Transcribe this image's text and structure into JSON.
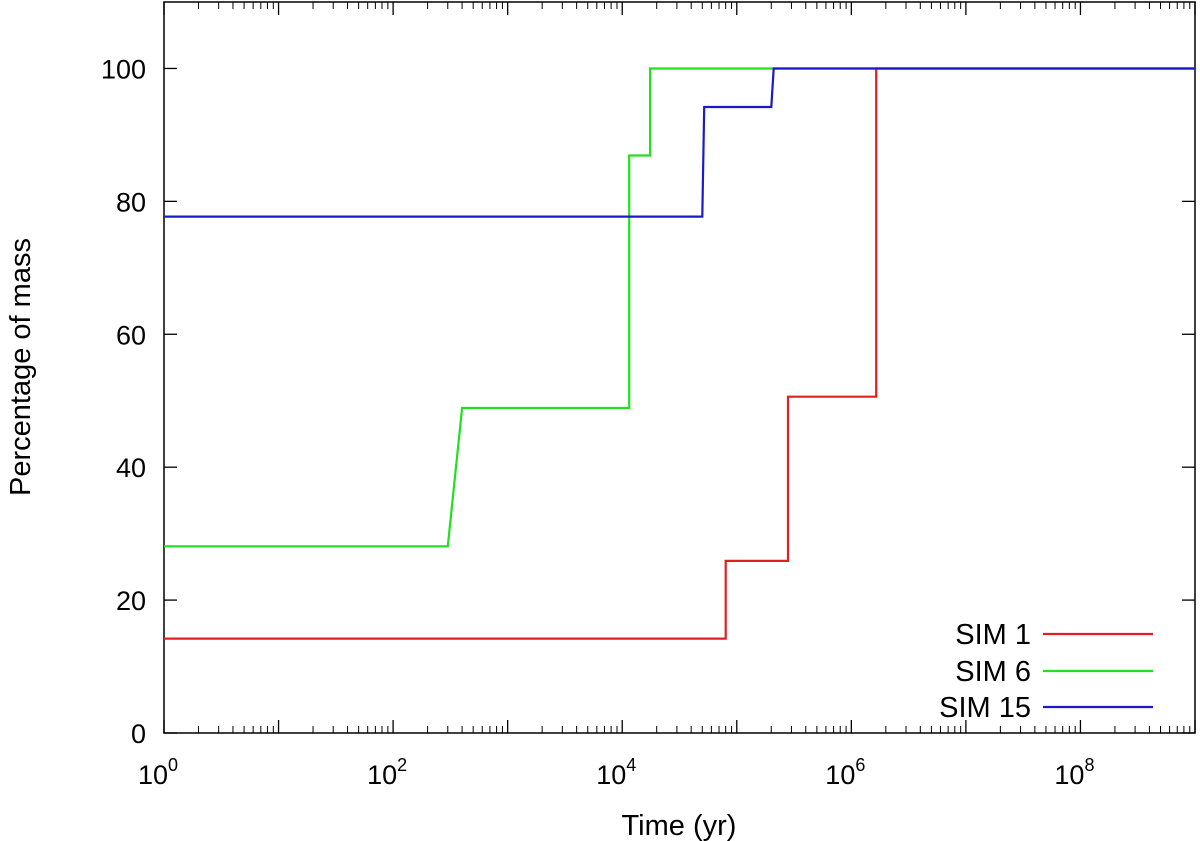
{
  "chart_data": {
    "type": "line",
    "title": "",
    "xlabel": "Time (yr)",
    "ylabel": "Percentage of mass",
    "xscale": "log10",
    "xlim": [
      1,
      1000000000
    ],
    "ylim": [
      0,
      110
    ],
    "xticks": [
      {
        "base": "10",
        "exp": "0",
        "value": 1
      },
      {
        "base": "10",
        "exp": "2",
        "value": 100
      },
      {
        "base": "10",
        "exp": "4",
        "value": 10000
      },
      {
        "base": "10",
        "exp": "6",
        "value": 1000000
      },
      {
        "base": "10",
        "exp": "8",
        "value": 100000000
      }
    ],
    "yticks": [
      "0",
      "20",
      "40",
      "60",
      "80",
      "100"
    ],
    "grid": false,
    "legend_position": "bottom-right",
    "series": [
      {
        "name": "SIM 1",
        "color": "#e02020",
        "points": [
          [
            1,
            14.2
          ],
          [
            80000,
            14.2
          ],
          [
            80000,
            25.9
          ],
          [
            280000,
            25.9
          ],
          [
            280000,
            50.6
          ],
          [
            1650000,
            50.6
          ],
          [
            1650000,
            100
          ],
          [
            1000000000,
            100
          ]
        ]
      },
      {
        "name": "SIM 6",
        "color": "#20e020",
        "points": [
          [
            1,
            28.1
          ],
          [
            300,
            28.1
          ],
          [
            400,
            48.9
          ],
          [
            11500,
            48.9
          ],
          [
            11500,
            86.9
          ],
          [
            17500,
            86.9
          ],
          [
            17500,
            100
          ],
          [
            1000000000,
            100
          ]
        ]
      },
      {
        "name": "SIM 15",
        "color": "#1a1acc",
        "points": [
          [
            1,
            77.7
          ],
          [
            50000,
            77.7
          ],
          [
            52000,
            94.2
          ],
          [
            200000,
            94.2
          ],
          [
            210000,
            100
          ],
          [
            1000000000,
            100
          ]
        ]
      }
    ]
  }
}
